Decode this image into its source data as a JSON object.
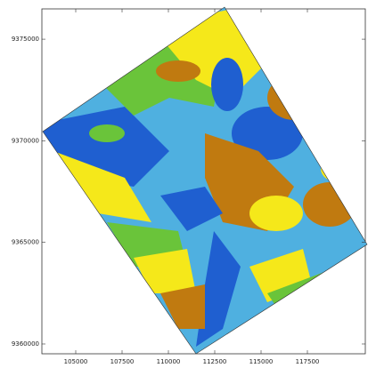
{
  "map": {
    "xlim": [
      103173,
      120625
    ],
    "ylim": [
      9359518,
      9376491
    ],
    "xticks": [
      105000,
      107500,
      110000,
      112500,
      115000,
      117500
    ],
    "yticks": [
      9360000,
      9365000,
      9370000,
      9375000
    ]
  }
}
